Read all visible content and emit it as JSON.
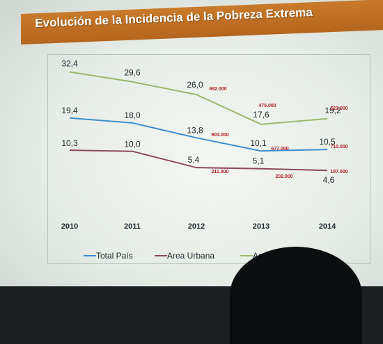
{
  "title": "Evolución de la Incidencia de la Pobreza Extrema",
  "colors": {
    "total": "#3d8fd0",
    "urbana": "#8e4a5a",
    "rural": "#9bb86a",
    "annotation": "#b3202a"
  },
  "chart_data": {
    "type": "line",
    "categories": [
      "2010",
      "2011",
      "2012",
      "2013",
      "2014"
    ],
    "ylim": [
      0,
      40
    ],
    "series": [
      {
        "name": "Total País",
        "values": [
          19.4,
          18.0,
          13.8,
          10.1,
          10.5
        ],
        "labels": [
          "19,4",
          "18,0",
          "13,8",
          "10,1",
          "10,5"
        ]
      },
      {
        "name": "Area Urbana",
        "values": [
          10.3,
          10.0,
          5.4,
          5.1,
          4.6
        ],
        "labels": [
          "10,3",
          "10,0",
          "5,4",
          "5,1",
          "4,6"
        ]
      },
      {
        "name": "Area Rural",
        "legend_text": "Area R",
        "values": [
          32.4,
          29.6,
          26.0,
          17.6,
          19.2
        ],
        "labels": [
          "32,4",
          "29,6",
          "26,0",
          "17,6",
          "19,2"
        ]
      }
    ],
    "annotations": [
      "692.000",
      "475.000",
      "523.000",
      "903.000",
      "677.000",
      "710.000",
      "211.000",
      "202.000",
      "187.000"
    ],
    "legend_position": "bottom"
  }
}
